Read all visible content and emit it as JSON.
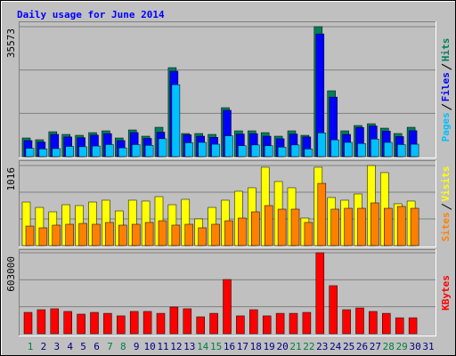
{
  "chart_data": {
    "type": "bar",
    "title": "Daily usage for June 2014",
    "categories": [
      "1",
      "2",
      "3",
      "4",
      "5",
      "6",
      "7",
      "8",
      "9",
      "10",
      "11",
      "12",
      "13",
      "14",
      "15",
      "16",
      "17",
      "18",
      "19",
      "20",
      "21",
      "22",
      "23",
      "24",
      "25",
      "26",
      "27",
      "28",
      "29",
      "30",
      "31"
    ],
    "category_colors": [
      "#008040",
      "#000080",
      "#000080",
      "#000080",
      "#000080",
      "#000080",
      "#008040",
      "#008040",
      "#000080",
      "#000080",
      "#000080",
      "#000080",
      "#000080",
      "#008040",
      "#008040",
      "#000080",
      "#000080",
      "#000080",
      "#000080",
      "#000080",
      "#008040",
      "#008040",
      "#000080",
      "#000080",
      "#000080",
      "#000080",
      "#000080",
      "#008040",
      "#008040",
      "#000080",
      "#000080"
    ],
    "grid": true,
    "panels": [
      {
        "ylim": [
          0,
          35573
        ],
        "yticks": [
          35573
        ],
        "series": [
          {
            "name": "Hits",
            "color": "#00805c",
            "values": [
              5116,
              4629,
              6821,
              6090,
              5847,
              6578,
              7065,
              5116,
              7309,
              5604,
              8040,
              24365,
              6335,
              6335,
              6090,
              13400,
              7065,
              7065,
              6578,
              5604,
              7065,
              5847,
              35573,
              18030,
              7065,
              8527,
              9015,
              7796,
              6335,
              8040,
              null
            ]
          },
          {
            "name": "Files",
            "color": "#0000ff",
            "values": [
              4400,
              4000,
              6100,
              5400,
              5200,
              5900,
              6300,
              4400,
              6600,
              5000,
              6700,
              23400,
              6000,
              5600,
              5300,
              12700,
              6200,
              6300,
              5600,
              4900,
              6200,
              5400,
              33600,
              16300,
              6100,
              8000,
              8400,
              7000,
              5500,
              7100,
              null
            ]
          },
          {
            "name": "Pages",
            "color": "#00c0ff",
            "values": [
              2300,
              2100,
              2200,
              2800,
              2700,
              2900,
              3300,
              2400,
              3300,
              3100,
              4900,
              19700,
              3800,
              3900,
              3400,
              5700,
              3000,
              3200,
              3000,
              2600,
              3200,
              2100,
              6500,
              4600,
              3900,
              3600,
              4800,
              3900,
              3300,
              3400,
              null
            ]
          }
        ]
      },
      {
        "ylim": [
          0,
          1016
        ],
        "yticks": [
          1016
        ],
        "series": [
          {
            "name": "Visits",
            "color": "#ffff00",
            "values": [
              553,
              485,
              429,
              519,
              508,
              553,
              576,
              440,
              576,
              565,
              621,
              519,
              587,
              339,
              485,
              576,
              689,
              734,
              994,
              813,
              734,
              350,
              994,
              610,
              576,
              655,
              1016,
              926,
              531,
              565,
              null
            ]
          },
          {
            "name": "Sites",
            "color": "#ff8000",
            "values": [
              248,
              226,
              260,
              271,
              282,
              271,
              294,
              260,
              271,
              294,
              316,
              260,
              271,
              226,
              271,
              316,
              350,
              429,
              508,
              463,
              463,
              294,
              790,
              463,
              474,
              474,
              542,
              474,
              497,
              474,
              null
            ]
          }
        ]
      },
      {
        "ylim": [
          0,
          603000
        ],
        "yticks": [
          603000
        ],
        "series": [
          {
            "name": "KBytes",
            "color": "#ff0000",
            "values": [
              159000,
              179000,
              186000,
              166000,
              146000,
              159000,
              152000,
              133000,
              166000,
              166000,
              152000,
              199000,
              186000,
              126000,
              152000,
              404000,
              133000,
              179000,
              133000,
              152000,
              152000,
              159000,
              603000,
              358000,
              179000,
              192000,
              166000,
              152000,
              119000,
              119000,
              null
            ]
          }
        ]
      }
    ]
  }
}
